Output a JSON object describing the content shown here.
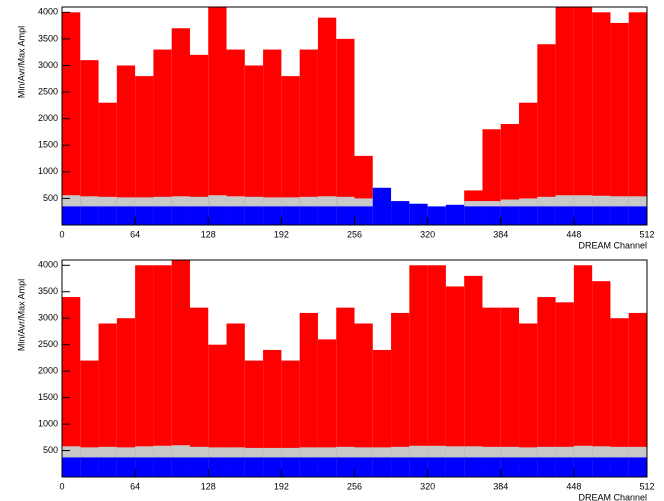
{
  "chart_data": [
    {
      "type": "histogram",
      "y_label": "Min/Avr/Max Ampl",
      "x_label": "DREAM Channel",
      "bins": [
        0,
        16,
        32,
        48,
        64,
        80,
        96,
        112,
        128,
        144,
        160,
        176,
        192,
        208,
        224,
        240,
        256,
        272,
        288,
        304,
        320,
        336,
        352,
        368,
        384,
        400,
        416,
        432,
        448,
        464,
        480,
        496,
        512
      ],
      "series": [
        {
          "color": "#ff0000",
          "values": [
            4000,
            3100,
            2300,
            3000,
            2800,
            3300,
            3700,
            3200,
            4100,
            3300,
            3000,
            3300,
            2800,
            3300,
            3900,
            3500,
            1300,
            null,
            null,
            null,
            null,
            null,
            650,
            1800,
            1900,
            2300,
            3400,
            4100,
            4100,
            4000,
            3800,
            4000
          ]
        },
        {
          "color": "#c8c8c8",
          "values": [
            560,
            540,
            530,
            520,
            520,
            530,
            540,
            530,
            560,
            540,
            530,
            520,
            520,
            530,
            540,
            530,
            500,
            null,
            null,
            null,
            null,
            null,
            450,
            450,
            480,
            500,
            530,
            560,
            560,
            550,
            540,
            540
          ]
        },
        {
          "color": "#0000ff",
          "values": [
            350,
            350,
            350,
            350,
            350,
            350,
            350,
            350,
            350,
            350,
            350,
            350,
            350,
            350,
            350,
            350,
            350,
            700,
            450,
            400,
            350,
            380,
            350,
            350,
            350,
            350,
            350,
            350,
            350,
            350,
            350,
            350
          ]
        }
      ],
      "xlim": [
        0,
        512
      ],
      "ylim": [
        0,
        4100
      ],
      "xticks": [
        0,
        64,
        128,
        192,
        256,
        320,
        384,
        448,
        512
      ],
      "yticks": [
        500,
        1000,
        1500,
        2000,
        2500,
        3000,
        3500,
        4000
      ]
    },
    {
      "type": "histogram",
      "y_label": "Min/Avr/Max Ampl",
      "x_label": "DREAM Channel",
      "bins": [
        0,
        16,
        32,
        48,
        64,
        80,
        96,
        112,
        128,
        144,
        160,
        176,
        192,
        208,
        224,
        240,
        256,
        272,
        288,
        304,
        320,
        336,
        352,
        368,
        384,
        400,
        416,
        432,
        448,
        464,
        480,
        496,
        512
      ],
      "series": [
        {
          "color": "#ff0000",
          "values": [
            3400,
            2200,
            2900,
            3000,
            4000,
            4000,
            4100,
            3200,
            2500,
            2900,
            2200,
            2400,
            2200,
            3100,
            2600,
            3200,
            2900,
            2400,
            3100,
            4000,
            4000,
            3600,
            3800,
            3200,
            3200,
            2900,
            3400,
            3300,
            4000,
            3700,
            3000,
            3100
          ]
        },
        {
          "color": "#c8c8c8",
          "values": [
            580,
            560,
            570,
            560,
            580,
            590,
            600,
            570,
            560,
            560,
            550,
            550,
            550,
            560,
            560,
            570,
            560,
            560,
            570,
            590,
            590,
            580,
            580,
            570,
            570,
            560,
            570,
            570,
            590,
            580,
            570,
            570
          ]
        },
        {
          "color": "#0000ff",
          "values": [
            370,
            370,
            370,
            370,
            370,
            370,
            370,
            370,
            370,
            370,
            370,
            370,
            370,
            370,
            370,
            370,
            370,
            370,
            370,
            370,
            370,
            370,
            370,
            370,
            370,
            370,
            370,
            370,
            370,
            370,
            370,
            370
          ]
        }
      ],
      "xlim": [
        0,
        512
      ],
      "ylim": [
        0,
        4100
      ],
      "xticks": [
        0,
        64,
        128,
        192,
        256,
        320,
        384,
        448,
        512
      ],
      "yticks": [
        500,
        1000,
        1500,
        2000,
        2500,
        3000,
        3500,
        4000
      ]
    }
  ]
}
